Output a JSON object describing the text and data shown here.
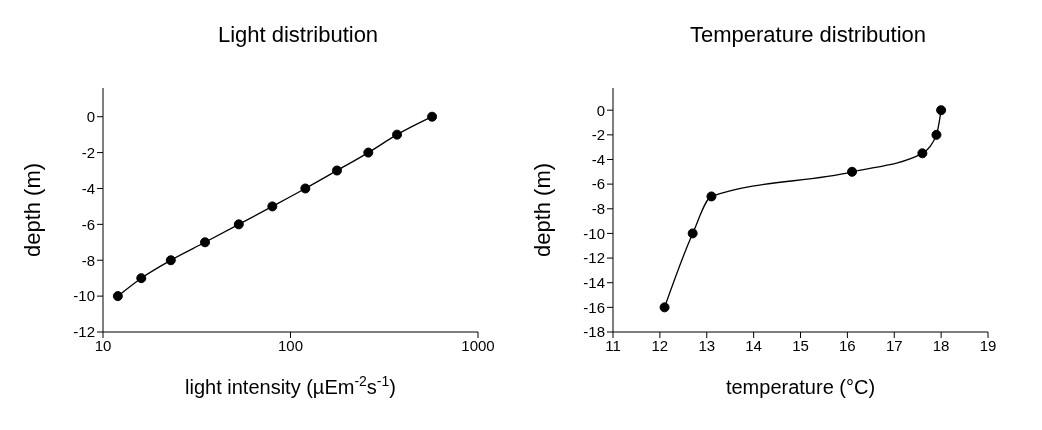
{
  "chart_data": [
    {
      "type": "line",
      "title": "Light distribution",
      "xlabel": "light intensity (µEm$^{-2}$s$^{-1}$)",
      "ylabel": "depth (m)",
      "log": "x",
      "marker": "circle",
      "x": [
        12,
        16,
        23,
        35,
        53,
        80,
        120,
        177,
        260,
        370,
        569
      ],
      "series": [
        {
          "color": "#000000",
          "values": [
            -10,
            -9,
            -8,
            -7,
            -6,
            -5,
            -4,
            -3,
            -2,
            -1,
            0
          ]
        }
      ],
      "xlim": [
        10,
        1000
      ],
      "xticks": [
        10,
        100,
        1000
      ],
      "ylim": [
        -12,
        1.6
      ],
      "yticks": [
        -12,
        -10,
        -8,
        -6,
        -4,
        -2,
        0
      ]
    },
    {
      "type": "line",
      "title": "Temperature distribution",
      "xlabel": "temperature (°C)",
      "ylabel": "depth (m)",
      "marker": "circle",
      "x": [
        18,
        17.9,
        17.6,
        16.1,
        13.1,
        12.7,
        12.1
      ],
      "series": [
        {
          "color": "#000000",
          "values": [
            0,
            -2,
            -3.5,
            -5,
            -7,
            -10,
            -16
          ]
        }
      ],
      "xlim": [
        11,
        19
      ],
      "xticks": [
        11,
        12,
        13,
        14,
        15,
        16,
        17,
        18,
        19
      ],
      "ylim": [
        -18,
        1.8
      ],
      "yticks": [
        -18,
        -16,
        -14,
        -12,
        -10,
        -8,
        -6,
        -4,
        -2,
        0
      ]
    }
  ]
}
